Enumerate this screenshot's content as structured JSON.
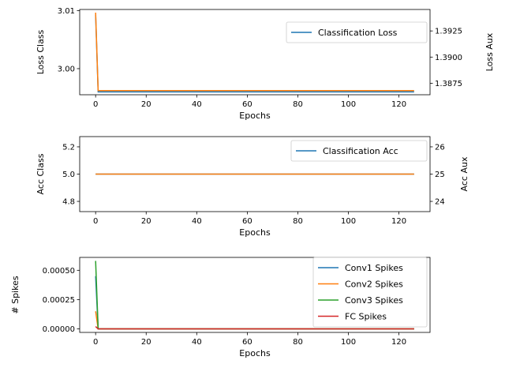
{
  "chart_data": [
    {
      "type": "line",
      "x_range": [
        0,
        126
      ],
      "xlim": [
        -6.3,
        132.3
      ],
      "xticks": [
        0,
        20,
        40,
        60,
        80,
        100,
        120
      ],
      "xlabel": "Epochs",
      "ylabel": "Loss Class",
      "ylim": [
        2.9955,
        3.0102
      ],
      "yticks": [
        3.0,
        3.01
      ],
      "ytick_labels": [
        "3.00",
        "3.01"
      ],
      "y2label": "Loss Aux",
      "y2lim": [
        1.3864,
        1.39455
      ],
      "y2ticks": [
        1.3875,
        1.39,
        1.3925
      ],
      "y2tick_labels": [
        "1.3875",
        "1.3900",
        "1.3925"
      ],
      "legend_position": "upper right",
      "legend": [
        "Classification Loss"
      ],
      "series": [
        {
          "name": "Classification Loss",
          "axis": "left",
          "color": "#1f77b4",
          "start": 3.0093,
          "rest": 2.996
        },
        {
          "axis": "right",
          "color": "#ff7f0e",
          "start": 1.39425,
          "rest": 1.3868
        }
      ]
    },
    {
      "type": "line",
      "x_range": [
        0,
        126
      ],
      "xlim": [
        -6.3,
        132.3
      ],
      "xticks": [
        0,
        20,
        40,
        60,
        80,
        100,
        120
      ],
      "xlabel": "Epochs",
      "ylabel": "Acc Class",
      "ylim": [
        4.725,
        5.275
      ],
      "yticks": [
        4.8,
        5.0,
        5.2
      ],
      "ytick_labels": [
        "4.8",
        "5.0",
        "5.2"
      ],
      "y2label": "Acc Aux",
      "y2lim": [
        23.625,
        26.375
      ],
      "y2ticks": [
        24,
        25,
        26
      ],
      "y2tick_labels": [
        "24",
        "25",
        "26"
      ],
      "legend_position": "upper right",
      "legend": [
        "Classification Acc"
      ],
      "series": [
        {
          "name": "Classification Acc",
          "axis": "left",
          "color": "#1f77b4",
          "start": 5.0,
          "rest": 5.0
        },
        {
          "axis": "right",
          "color": "#ff7f0e",
          "start": 25.0,
          "rest": 25.0
        }
      ]
    },
    {
      "type": "line",
      "x_range": [
        0,
        126
      ],
      "xlim": [
        -6.3,
        132.3
      ],
      "xticks": [
        0,
        20,
        40,
        60,
        80,
        100,
        120
      ],
      "xlabel": "Epochs",
      "ylabel": "# Spikes",
      "ylim": [
        -3e-05,
        0.00061
      ],
      "yticks": [
        0.0,
        0.00025,
        0.0005
      ],
      "ytick_labels": [
        "0.00000",
        "0.00025",
        "0.00050"
      ],
      "legend_position": "upper right",
      "legend": [
        "Conv1 Spikes",
        "Conv2 Spikes",
        "Conv3 Spikes",
        "FC Spikes"
      ],
      "series": [
        {
          "name": "Conv1 Spikes",
          "axis": "left",
          "color": "#1f77b4",
          "start": 0.00045,
          "rest": 0.0
        },
        {
          "name": "Conv2 Spikes",
          "axis": "left",
          "color": "#ff7f0e",
          "start": 0.00015,
          "rest": 0.0
        },
        {
          "name": "Conv3 Spikes",
          "axis": "left",
          "color": "#2ca02c",
          "start": 0.00058,
          "rest": 0.0
        },
        {
          "name": "FC Spikes",
          "axis": "left",
          "color": "#d62728",
          "start": 2e-05,
          "rest": 0.0
        }
      ]
    }
  ]
}
